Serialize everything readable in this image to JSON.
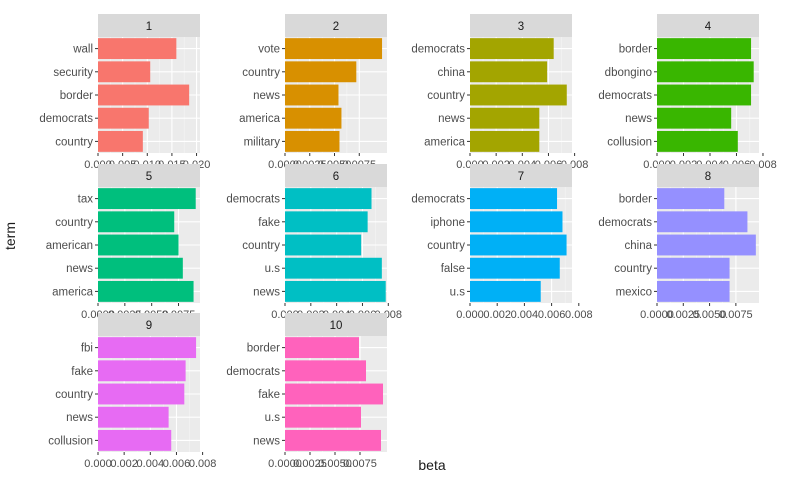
{
  "chart_data": {
    "type": "bar",
    "orientation": "horizontal",
    "xlabel": "beta",
    "ylabel": "term",
    "grid": true,
    "legend": "none",
    "panels": [
      {
        "strip": "1",
        "color": "#F8766D",
        "categories": [
          "wall",
          "security",
          "border",
          "democrats",
          "country"
        ],
        "values": [
          0.0159,
          0.0106,
          0.0185,
          0.0103,
          0.0091
        ],
        "xlim": [
          0,
          0.0207
        ],
        "ticks": [
          0,
          0.005,
          0.01,
          0.015,
          0.02
        ],
        "tick_labels": [
          "0.000",
          "0.005",
          "0.010",
          "0.015",
          "0.020"
        ]
      },
      {
        "strip": "2",
        "color": "#D89000",
        "categories": [
          "vote",
          "country",
          "news",
          "america",
          "military"
        ],
        "values": [
          0.0098,
          0.0072,
          0.0054,
          0.0057,
          0.0055
        ],
        "xlim": [
          0,
          0.0103
        ],
        "ticks": [
          0,
          0.0025,
          0.005,
          0.0075
        ],
        "tick_labels": [
          "0.0000",
          "0.0025",
          "0.0050",
          "0.0075"
        ]
      },
      {
        "strip": "3",
        "color": "#A3A500",
        "categories": [
          "democrats",
          "china",
          "country",
          "news",
          "america"
        ],
        "values": [
          0.0064,
          0.0059,
          0.0074,
          0.0053,
          0.0053
        ],
        "xlim": [
          0,
          0.0078
        ],
        "ticks": [
          0,
          0.002,
          0.004,
          0.006,
          0.008
        ],
        "tick_labels": [
          "0.000",
          "0.002",
          "0.004",
          "0.006",
          "0.008"
        ]
      },
      {
        "strip": "4",
        "color": "#39B600",
        "categories": [
          "border",
          "dbongino",
          "democrats",
          "news",
          "collusion"
        ],
        "values": [
          0.0071,
          0.0073,
          0.0071,
          0.0056,
          0.0061
        ],
        "xlim": [
          0,
          0.0077
        ],
        "ticks": [
          0,
          0.002,
          0.004,
          0.006,
          0.008
        ],
        "tick_labels": [
          "0.000",
          "0.002",
          "0.004",
          "0.006",
          "0.008"
        ]
      },
      {
        "strip": "5",
        "color": "#00BF7D",
        "categories": [
          "tax",
          "country",
          "american",
          "news",
          "america"
        ],
        "values": [
          0.0091,
          0.0071,
          0.0075,
          0.0079,
          0.0089
        ],
        "xlim": [
          0,
          0.0095
        ],
        "ticks": [
          0,
          0.0025,
          0.005,
          0.0075
        ],
        "tick_labels": [
          "0.0000",
          "0.0025",
          "0.0050",
          "0.0075"
        ]
      },
      {
        "strip": "6",
        "color": "#00BFC4",
        "categories": [
          "democrats",
          "fake",
          "country",
          "u.s",
          "news"
        ],
        "values": [
          0.0067,
          0.0064,
          0.0059,
          0.0075,
          0.0078
        ],
        "xlim": [
          0,
          0.0079
        ],
        "ticks": [
          0,
          0.002,
          0.004,
          0.006,
          0.008
        ],
        "tick_labels": [
          "0.000",
          "0.002",
          "0.004",
          "0.006",
          "0.008"
        ]
      },
      {
        "strip": "7",
        "color": "#00B0F6",
        "categories": [
          "democrats",
          "iphone",
          "country",
          "false",
          "u.s"
        ],
        "values": [
          0.0064,
          0.0068,
          0.0071,
          0.0066,
          0.0052
        ],
        "xlim": [
          0,
          0.0075
        ],
        "ticks": [
          0,
          0.002,
          0.004,
          0.006,
          0.008
        ],
        "tick_labels": [
          "0.000",
          "0.002",
          "0.004",
          "0.006",
          "0.008"
        ]
      },
      {
        "strip": "8",
        "color": "#9590FF",
        "categories": [
          "border",
          "democrats",
          "china",
          "country",
          "mexico"
        ],
        "values": [
          0.0064,
          0.0086,
          0.0094,
          0.0069,
          0.0069
        ],
        "xlim": [
          0,
          0.0097
        ],
        "ticks": [
          0,
          0.0025,
          0.005,
          0.0075
        ],
        "tick_labels": [
          "0.0000",
          "0.0025",
          "0.0050",
          "0.0075"
        ]
      },
      {
        "strip": "9",
        "color": "#E76BF3",
        "categories": [
          "fbi",
          "fake",
          "country",
          "news",
          "collusion"
        ],
        "values": [
          0.0075,
          0.0067,
          0.0066,
          0.0054,
          0.0056
        ],
        "xlim": [
          0,
          0.0078
        ],
        "ticks": [
          0,
          0.002,
          0.004,
          0.006,
          0.008
        ],
        "tick_labels": [
          "0.000",
          "0.002",
          "0.004",
          "0.006",
          "0.008"
        ]
      },
      {
        "strip": "10",
        "color": "#FF62BC",
        "categories": [
          "border",
          "democrats",
          "fake",
          "u.s",
          "news"
        ],
        "values": [
          0.0074,
          0.0081,
          0.0098,
          0.0076,
          0.0096
        ],
        "xlim": [
          0,
          0.0102
        ],
        "ticks": [
          0,
          0.0025,
          0.005,
          0.0075
        ],
        "tick_labels": [
          "0.0000",
          "0.0025",
          "0.0050",
          "0.0075"
        ]
      }
    ]
  }
}
